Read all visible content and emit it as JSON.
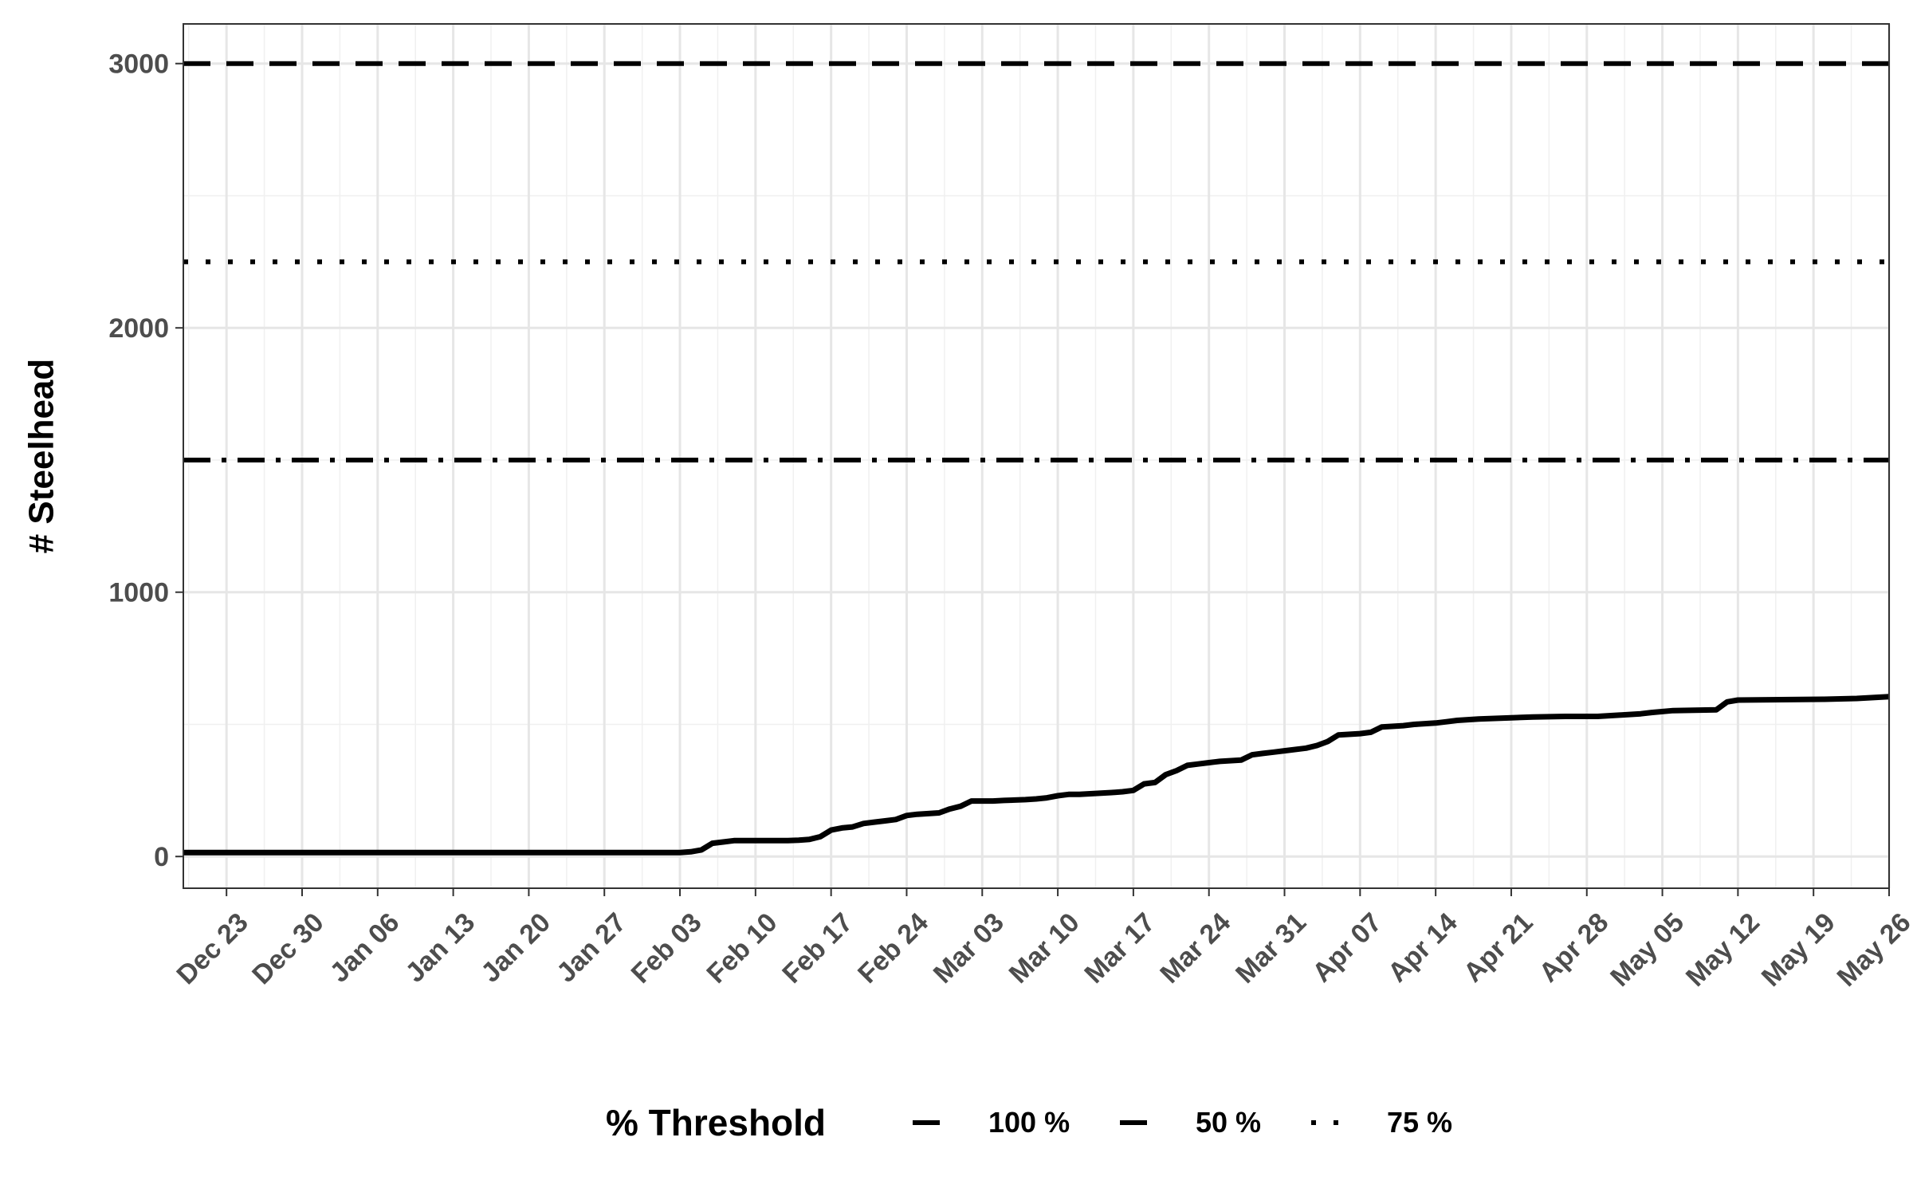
{
  "chart_data": {
    "type": "line",
    "title": "",
    "xlabel": "",
    "ylabel": "# Steelhead",
    "x_axis_type": "date",
    "xlim": [
      "2018-12-19",
      "2019-05-26"
    ],
    "ylim": [
      -120,
      3150
    ],
    "x_ticks": [
      {
        "date": "2018-12-23",
        "label": "Dec 23"
      },
      {
        "date": "2018-12-30",
        "label": "Dec 30"
      },
      {
        "date": "2019-01-06",
        "label": "Jan 06"
      },
      {
        "date": "2019-01-13",
        "label": "Jan 13"
      },
      {
        "date": "2019-01-20",
        "label": "Jan 20"
      },
      {
        "date": "2019-01-27",
        "label": "Jan 27"
      },
      {
        "date": "2019-02-03",
        "label": "Feb 03"
      },
      {
        "date": "2019-02-10",
        "label": "Feb 10"
      },
      {
        "date": "2019-02-17",
        "label": "Feb 17"
      },
      {
        "date": "2019-02-24",
        "label": "Feb 24"
      },
      {
        "date": "2019-03-03",
        "label": "Mar 03"
      },
      {
        "date": "2019-03-10",
        "label": "Mar 10"
      },
      {
        "date": "2019-03-17",
        "label": "Mar 17"
      },
      {
        "date": "2019-03-24",
        "label": "Mar 24"
      },
      {
        "date": "2019-03-31",
        "label": "Mar 31"
      },
      {
        "date": "2019-04-07",
        "label": "Apr 07"
      },
      {
        "date": "2019-04-14",
        "label": "Apr 14"
      },
      {
        "date": "2019-04-21",
        "label": "Apr 21"
      },
      {
        "date": "2019-04-28",
        "label": "Apr 28"
      },
      {
        "date": "2019-05-05",
        "label": "May 05"
      },
      {
        "date": "2019-05-12",
        "label": "May 12"
      },
      {
        "date": "2019-05-19",
        "label": "May 19"
      },
      {
        "date": "2019-05-26",
        "label": "May 26"
      }
    ],
    "y_ticks": [
      {
        "value": 0,
        "label": "0"
      },
      {
        "value": 1000,
        "label": "1000"
      },
      {
        "value": 2000,
        "label": "2000"
      },
      {
        "value": 3000,
        "label": "3000"
      }
    ],
    "y_minor_ticks": [
      500,
      1500,
      2500
    ],
    "grid": true,
    "series": [
      {
        "line_style": "solid",
        "color": "#000000",
        "points": [
          [
            "2018-12-19",
            15
          ],
          [
            "2019-01-20",
            15
          ],
          [
            "2019-02-01",
            15
          ],
          [
            "2019-02-03",
            15
          ],
          [
            "2019-02-04",
            18
          ],
          [
            "2019-02-05",
            25
          ],
          [
            "2019-02-06",
            50
          ],
          [
            "2019-02-07",
            55
          ],
          [
            "2019-02-08",
            60
          ],
          [
            "2019-02-13",
            60
          ],
          [
            "2019-02-14",
            62
          ],
          [
            "2019-02-15",
            65
          ],
          [
            "2019-02-16",
            75
          ],
          [
            "2019-02-17",
            100
          ],
          [
            "2019-02-18",
            108
          ],
          [
            "2019-02-19",
            112
          ],
          [
            "2019-02-20",
            125
          ],
          [
            "2019-02-21",
            130
          ],
          [
            "2019-02-22",
            135
          ],
          [
            "2019-02-23",
            140
          ],
          [
            "2019-02-24",
            155
          ],
          [
            "2019-02-25",
            160
          ],
          [
            "2019-02-27",
            165
          ],
          [
            "2019-02-28",
            180
          ],
          [
            "2019-03-01",
            190
          ],
          [
            "2019-03-02",
            210
          ],
          [
            "2019-03-04",
            210
          ],
          [
            "2019-03-05",
            212
          ],
          [
            "2019-03-07",
            215
          ],
          [
            "2019-03-08",
            218
          ],
          [
            "2019-03-09",
            222
          ],
          [
            "2019-03-10",
            230
          ],
          [
            "2019-03-11",
            235
          ],
          [
            "2019-03-12",
            235
          ],
          [
            "2019-03-14",
            240
          ],
          [
            "2019-03-15",
            242
          ],
          [
            "2019-03-16",
            245
          ],
          [
            "2019-03-17",
            250
          ],
          [
            "2019-03-18",
            275
          ],
          [
            "2019-03-19",
            280
          ],
          [
            "2019-03-20",
            310
          ],
          [
            "2019-03-21",
            325
          ],
          [
            "2019-03-22",
            345
          ],
          [
            "2019-03-23",
            350
          ],
          [
            "2019-03-24",
            355
          ],
          [
            "2019-03-25",
            360
          ],
          [
            "2019-03-27",
            365
          ],
          [
            "2019-03-28",
            385
          ],
          [
            "2019-03-29",
            390
          ],
          [
            "2019-03-30",
            395
          ],
          [
            "2019-03-31",
            400
          ],
          [
            "2019-04-02",
            410
          ],
          [
            "2019-04-03",
            420
          ],
          [
            "2019-04-04",
            435
          ],
          [
            "2019-04-05",
            460
          ],
          [
            "2019-04-07",
            465
          ],
          [
            "2019-04-08",
            470
          ],
          [
            "2019-04-09",
            490
          ],
          [
            "2019-04-11",
            495
          ],
          [
            "2019-04-12",
            500
          ],
          [
            "2019-04-14",
            505
          ],
          [
            "2019-04-15",
            510
          ],
          [
            "2019-04-16",
            515
          ],
          [
            "2019-04-18",
            520
          ],
          [
            "2019-04-21",
            525
          ],
          [
            "2019-04-23",
            528
          ],
          [
            "2019-04-26",
            530
          ],
          [
            "2019-04-29",
            530
          ],
          [
            "2019-05-01",
            535
          ],
          [
            "2019-05-03",
            540
          ],
          [
            "2019-05-04",
            545
          ],
          [
            "2019-05-06",
            552
          ],
          [
            "2019-05-10",
            555
          ],
          [
            "2019-05-11",
            585
          ],
          [
            "2019-05-12",
            592
          ],
          [
            "2019-05-20",
            595
          ],
          [
            "2019-05-23",
            598
          ],
          [
            "2019-05-26",
            605
          ]
        ]
      }
    ],
    "reference_lines": [
      {
        "y": 1500,
        "label": "100 %",
        "dash": "longdash-dot"
      },
      {
        "y": 3000,
        "label": "50 %",
        "dash": "dashed"
      },
      {
        "y": 2250,
        "label": "75 %",
        "dash": "dotted"
      }
    ],
    "legend": {
      "title": "% Threshold",
      "placement": "bottom",
      "entries": [
        "100 %",
        "50 %",
        "75 %"
      ]
    }
  }
}
